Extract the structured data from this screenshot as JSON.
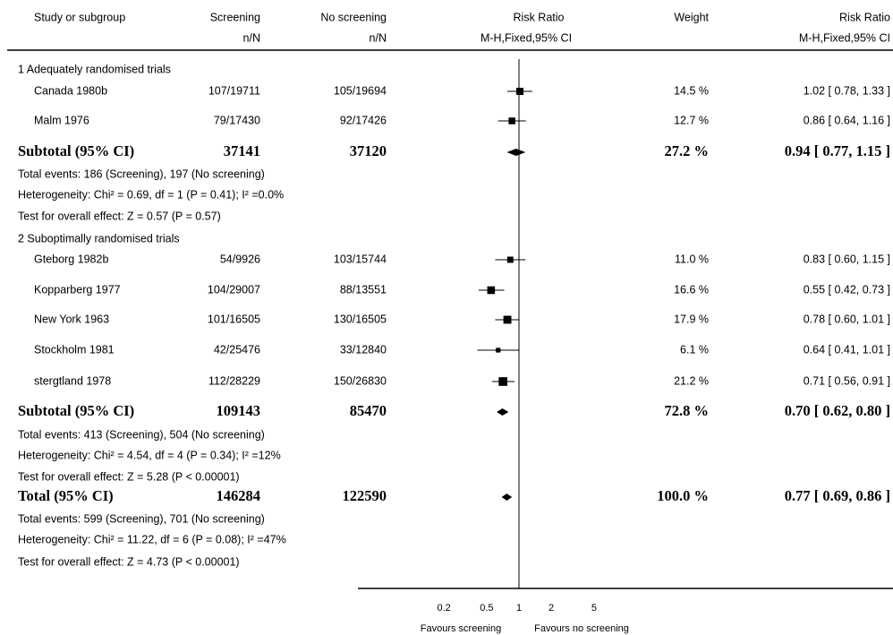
{
  "chart_data": {
    "type": "forest",
    "headers": {
      "study": "Study or subgroup",
      "screening": "Screening",
      "screening_sub": "n/N",
      "no_screening": "No screening",
      "no_screening_sub": "n/N",
      "plot": "Risk Ratio",
      "plot_sub": "M-H,Fixed,95% CI",
      "weight": "Weight",
      "rr": "Risk Ratio",
      "rr_sub": "M-H,Fixed,95% CI"
    },
    "rows": [
      {
        "kind": "group",
        "label": "1 Adequately randomised trials"
      },
      {
        "kind": "study",
        "name": "Canada 1980b",
        "screening": "107/19711",
        "no_screening": "105/19694",
        "weight": 14.5,
        "weight_label": "14.5 %",
        "rr": 1.02,
        "lo": 0.78,
        "hi": 1.33,
        "rr_label": "1.02 [ 0.78, 1.33 ]"
      },
      {
        "kind": "study",
        "name": "Malm 1976",
        "screening": "79/17430",
        "no_screening": "92/17426",
        "weight": 12.7,
        "weight_label": "12.7 %",
        "rr": 0.86,
        "lo": 0.64,
        "hi": 1.16,
        "rr_label": "0.86 [ 0.64, 1.16 ]"
      },
      {
        "kind": "subtotal",
        "name": "Subtotal (95% CI)",
        "screening": 37141,
        "no_screening": 37120,
        "weight": 27.2,
        "weight_label": "27.2 %",
        "rr": 0.94,
        "lo": 0.77,
        "hi": 1.15,
        "rr_label": "0.94 [ 0.77, 1.15 ]"
      },
      {
        "kind": "note",
        "label": "Total events: 186 (Screening), 197 (No screening)"
      },
      {
        "kind": "note",
        "label": "Heterogeneity: Chi² = 0.69, df = 1 (P = 0.41); I² =0.0%"
      },
      {
        "kind": "note",
        "label": "Test for overall effect: Z = 0.57 (P = 0.57)"
      },
      {
        "kind": "group",
        "label": "2 Suboptimally randomised trials"
      },
      {
        "kind": "study",
        "name": "Gteborg 1982b",
        "screening": "54/9926",
        "no_screening": "103/15744",
        "weight": 11.0,
        "weight_label": "11.0 %",
        "rr": 0.83,
        "lo": 0.6,
        "hi": 1.15,
        "rr_label": "0.83 [ 0.60, 1.15 ]"
      },
      {
        "kind": "study",
        "name": "Kopparberg 1977",
        "screening": "104/29007",
        "no_screening": "88/13551",
        "weight": 16.6,
        "weight_label": "16.6 %",
        "rr": 0.55,
        "lo": 0.42,
        "hi": 0.73,
        "rr_label": "0.55 [ 0.42, 0.73 ]"
      },
      {
        "kind": "study",
        "name": "New York 1963",
        "screening": "101/16505",
        "no_screening": "130/16505",
        "weight": 17.9,
        "weight_label": "17.9 %",
        "rr": 0.78,
        "lo": 0.6,
        "hi": 1.01,
        "rr_label": "0.78 [ 0.60, 1.01 ]"
      },
      {
        "kind": "study",
        "name": "Stockholm 1981",
        "screening": "42/25476",
        "no_screening": "33/12840",
        "weight": 6.1,
        "weight_label": "6.1 %",
        "rr": 0.64,
        "lo": 0.41,
        "hi": 1.01,
        "rr_label": "0.64 [ 0.41, 1.01 ]"
      },
      {
        "kind": "study",
        "name": "stergtland 1978",
        "screening": "112/28229",
        "no_screening": "150/26830",
        "weight": 21.2,
        "weight_label": "21.2 %",
        "rr": 0.71,
        "lo": 0.56,
        "hi": 0.91,
        "rr_label": "0.71 [ 0.56, 0.91 ]"
      },
      {
        "kind": "subtotal",
        "name": "Subtotal (95% CI)",
        "screening": 109143,
        "no_screening": 85470,
        "weight": 72.8,
        "weight_label": "72.8 %",
        "rr": 0.7,
        "lo": 0.62,
        "hi": 0.8,
        "rr_label": "0.70 [ 0.62, 0.80 ]"
      },
      {
        "kind": "note",
        "label": "Total events: 413 (Screening), 504 (No screening)"
      },
      {
        "kind": "note",
        "label": "Heterogeneity: Chi² = 4.54, df = 4 (P = 0.34); I² =12%"
      },
      {
        "kind": "note",
        "label": "Test for overall effect: Z = 5.28 (P < 0.00001)"
      },
      {
        "kind": "subtotal",
        "name": "Total (95% CI)",
        "screening": 146284,
        "no_screening": 122590,
        "weight": 100.0,
        "weight_label": "100.0 %",
        "rr": 0.77,
        "lo": 0.69,
        "hi": 0.86,
        "rr_label": "0.77 [ 0.69, 0.86 ]"
      },
      {
        "kind": "note",
        "label": "Total events: 599 (Screening), 701 (No screening)"
      },
      {
        "kind": "note",
        "label": "Heterogeneity: Chi² = 11.22, df = 6 (P = 0.08); I² =47%"
      },
      {
        "kind": "note",
        "label": "Test for overall effect: Z = 4.73 (P < 0.00001)"
      }
    ],
    "log": true,
    "xlim": [
      0.1,
      10
    ],
    "xticks": [
      0.2,
      0.5,
      1,
      2,
      5
    ],
    "reference": 1,
    "favours_left": "Favours screening",
    "favours_right": "Favours no screening",
    "color": "#000000"
  }
}
